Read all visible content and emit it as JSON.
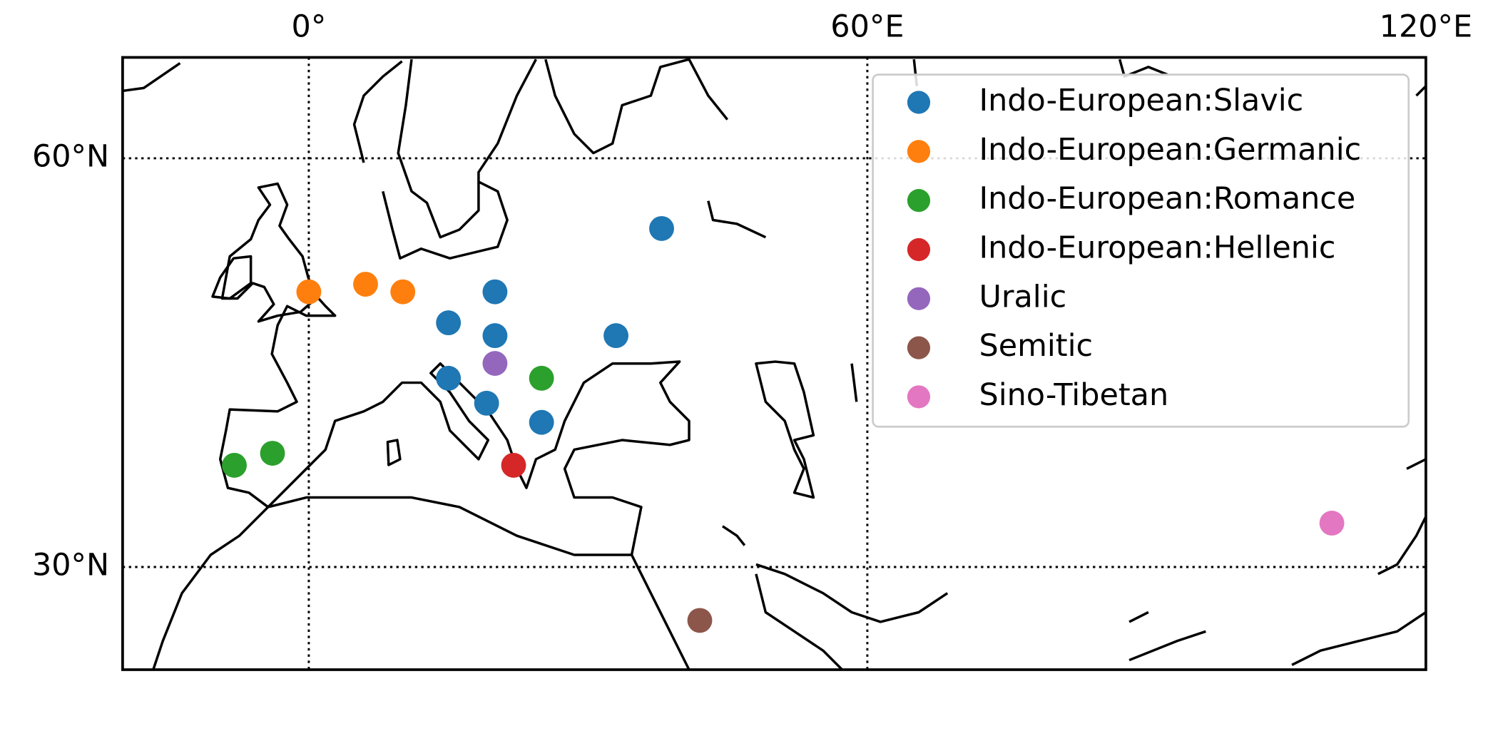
{
  "chart_data": {
    "type": "scatter",
    "projection": "mercator",
    "xlim": [
      -20,
      120
    ],
    "ylim": [
      20,
      65
    ],
    "xticks": [
      {
        "value": 0,
        "label": "0°"
      },
      {
        "value": 60,
        "label": "60°E"
      },
      {
        "value": 120,
        "label": "120°E"
      }
    ],
    "yticks": [
      {
        "value": 30,
        "label": "30°N"
      },
      {
        "value": 60,
        "label": "60°N"
      }
    ],
    "grid": true,
    "legend": "upper right",
    "series": [
      {
        "name": "Indo-European:Slavic",
        "color": "#1f77b4",
        "x": [
          37.9,
          20.0,
          15.0,
          20.0,
          33.0,
          15.0,
          19.1,
          25.0
        ],
        "y": [
          56.0,
          52.0,
          49.9,
          49.0,
          49.0,
          45.9,
          44.0,
          42.5
        ]
      },
      {
        "name": "Indo-European:Germanic",
        "color": "#ff7f0e",
        "x": [
          0.0,
          6.1,
          10.1
        ],
        "y": [
          52.0,
          52.5,
          52.0
        ]
      },
      {
        "name": "Indo-European:Romance",
        "color": "#2ca02c",
        "x": [
          -8.0,
          -3.9,
          25.0
        ],
        "y": [
          39.0,
          40.0,
          45.9
        ]
      },
      {
        "name": "Indo-European:Hellenic",
        "color": "#d62728",
        "x": [
          22.0
        ],
        "y": [
          39.0
        ]
      },
      {
        "name": "Uralic",
        "color": "#9467bd",
        "x": [
          20.0
        ],
        "y": [
          47.0
        ]
      },
      {
        "name": "Semitic",
        "color": "#8c564b",
        "x": [
          42.0
        ],
        "y": [
          24.9
        ]
      },
      {
        "name": "Sino-Tibetan",
        "color": "#e377c2",
        "x": [
          109.9
        ],
        "y": [
          34.0
        ]
      }
    ]
  }
}
